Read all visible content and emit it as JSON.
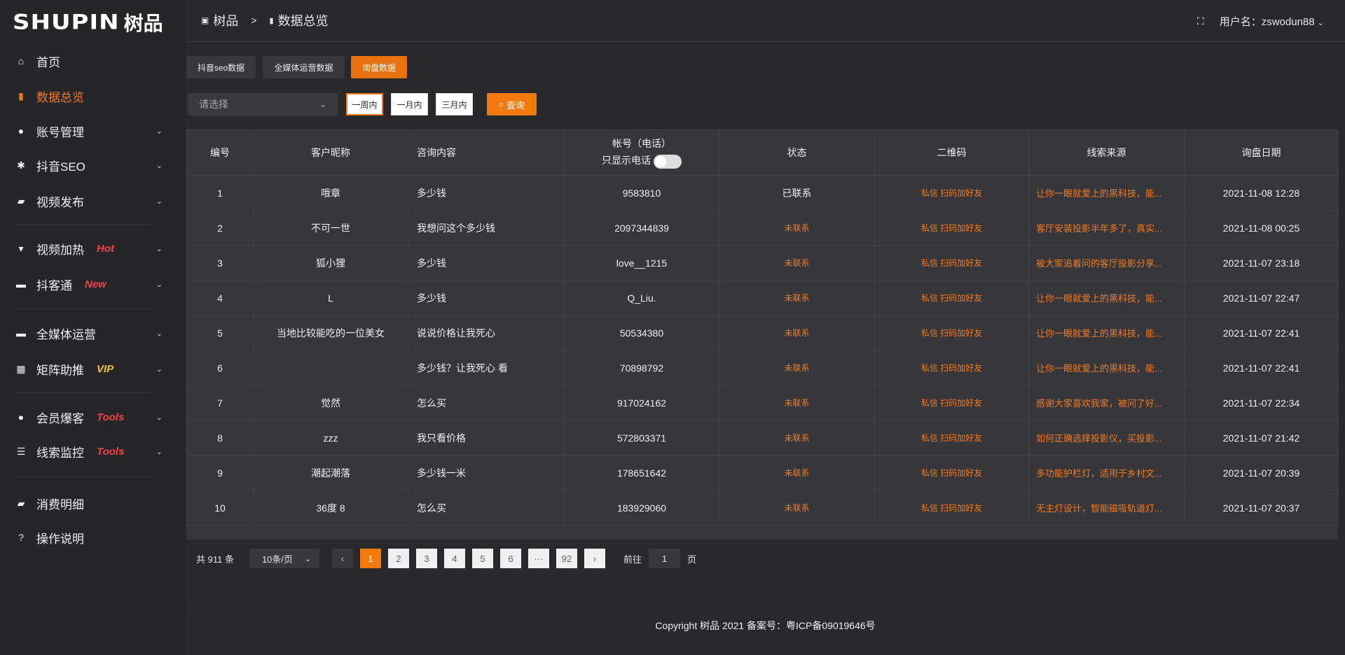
{
  "brand": {
    "logo_en": "SHUPIN",
    "logo_cn": "树品"
  },
  "sidebar": {
    "items": [
      {
        "label": "首页",
        "icon": "home-icon",
        "glyph": "⌂"
      },
      {
        "label": "数据总览",
        "icon": "bar-chart-icon",
        "glyph": "▮",
        "active": true
      },
      {
        "label": "账号管理",
        "icon": "user-icon",
        "glyph": "●"
      },
      {
        "label": "抖音SEO",
        "icon": "gear-icon",
        "glyph": "✱"
      },
      {
        "label": "视频发布",
        "icon": "camera-icon",
        "glyph": "▰"
      },
      {
        "label": "视频加热",
        "icon": "monitor-icon",
        "glyph": "▾",
        "tag": "Hot"
      },
      {
        "label": "抖客通",
        "icon": "chat-icon",
        "glyph": "▬",
        "tag": "New"
      },
      {
        "label": "全媒体运营",
        "icon": "desktop-icon",
        "glyph": "▬"
      },
      {
        "label": "矩阵助推",
        "icon": "grid-icon",
        "glyph": "▦",
        "tag": "VIP"
      },
      {
        "label": "会员爆客",
        "icon": "user-icon",
        "glyph": "●",
        "tag": "Tools"
      },
      {
        "label": "线索监控",
        "icon": "sliders-icon",
        "glyph": "☰",
        "tag": "Tools"
      },
      {
        "label": "消费明细",
        "icon": "wallet-icon",
        "glyph": "▰"
      },
      {
        "label": "操作说明",
        "icon": "help-icon",
        "glyph": "?"
      }
    ]
  },
  "colors": {
    "accent": "#f27a1a",
    "hot": "#f0404a",
    "vip": "#f0c040"
  },
  "header": {
    "crumb_root": "树品",
    "crumb_sep": ">",
    "crumb_current": "数据总览",
    "user_label": "用户名：zswodun88"
  },
  "tabs": [
    "抖音seo数据",
    "全媒体运营数据",
    "询盘数据"
  ],
  "filter": {
    "select_placeholder": "请选择",
    "ranges": [
      "一周内",
      "一月内",
      "三月内"
    ],
    "query": "查询"
  },
  "table": {
    "columns": [
      "编号",
      "客户昵称",
      "咨询内容",
      "帐号（电话）",
      "状态",
      "二维码",
      "线索来源",
      "询盘日期"
    ],
    "phone_only_label": "只显示电话",
    "rows": [
      {
        "id": "1",
        "name": "哦章",
        "content": "多少钱",
        "account": "9583810",
        "status": "已联系",
        "qr": "私信 扫码加好友",
        "source": "让你一眼就爱上的黑科技，能...",
        "date": "2021-11-08 12:28"
      },
      {
        "id": "2",
        "name": "不可一世",
        "content": "我想问这个多少钱",
        "account": "2097344839",
        "status": "未联系",
        "qr": "私信 扫码加好友",
        "source": "客厅安装投影半年多了，真实...",
        "date": "2021-11-08 00:25"
      },
      {
        "id": "3",
        "name": "狐小狸",
        "content": "多少钱",
        "account": "love__1215",
        "status": "未联系",
        "qr": "私信 扫码加好友",
        "source": "被大家追着问的客厅投影分享...",
        "date": "2021-11-07 23:18"
      },
      {
        "id": "4",
        "name": "L",
        "content": "多少钱",
        "account": "Q_Liu.",
        "status": "未联系",
        "qr": "私信 扫码加好友",
        "source": "让你一眼就爱上的黑科技，能...",
        "date": "2021-11-07 22:47"
      },
      {
        "id": "5",
        "name": "当地比较能吃的一位美女",
        "content": "说说价格让我死心",
        "account": "50534380",
        "status": "未联系",
        "qr": "私信 扫码加好友",
        "source": "让你一眼就爱上的黑科技，能...",
        "date": "2021-11-07 22:41"
      },
      {
        "id": "6",
        "name": "",
        "content": "多少钱？让我死心 看",
        "account": "70898792",
        "status": "未联系",
        "qr": "私信 扫码加好友",
        "source": "让你一眼就爱上的黑科技，能...",
        "date": "2021-11-07 22:41"
      },
      {
        "id": "7",
        "name": "觉然",
        "content": "怎么买",
        "account": "917024162",
        "status": "未联系",
        "qr": "私信 扫码加好友",
        "source": "感谢大家喜欢我家，被问了好...",
        "date": "2021-11-07 22:34"
      },
      {
        "id": "8",
        "name": "zzz",
        "content": "我只看价格",
        "account": "572803371",
        "status": "未联系",
        "qr": "私信 扫码加好友",
        "source": "如何正确选择投影仪，买投影...",
        "date": "2021-11-07 21:42"
      },
      {
        "id": "9",
        "name": "潮起潮落",
        "content": "多少钱一米",
        "account": "178651642",
        "status": "未联系",
        "qr": "私信 扫码加好友",
        "source": "多功能护栏灯，适用于乡村文...",
        "date": "2021-11-07 20:39"
      },
      {
        "id": "10",
        "name": "36度 8",
        "content": "怎么买",
        "account": "183929060",
        "status": "未联系",
        "qr": "私信 扫码加好友",
        "source": "无主灯设计，智能磁吸轨道灯...",
        "date": "2021-11-07 20:37"
      }
    ]
  },
  "pagination": {
    "total": "共 911 条",
    "page_size": "10条/页",
    "pages": [
      "1",
      "2",
      "3",
      "4",
      "5",
      "6",
      "···",
      "92"
    ],
    "current": "1",
    "goto_label": "前往",
    "goto_value": "1",
    "goto_suffix": "页"
  },
  "footer": {
    "copyright": "Copyright 树品 2021 备案号：粤ICP备09019646号"
  }
}
